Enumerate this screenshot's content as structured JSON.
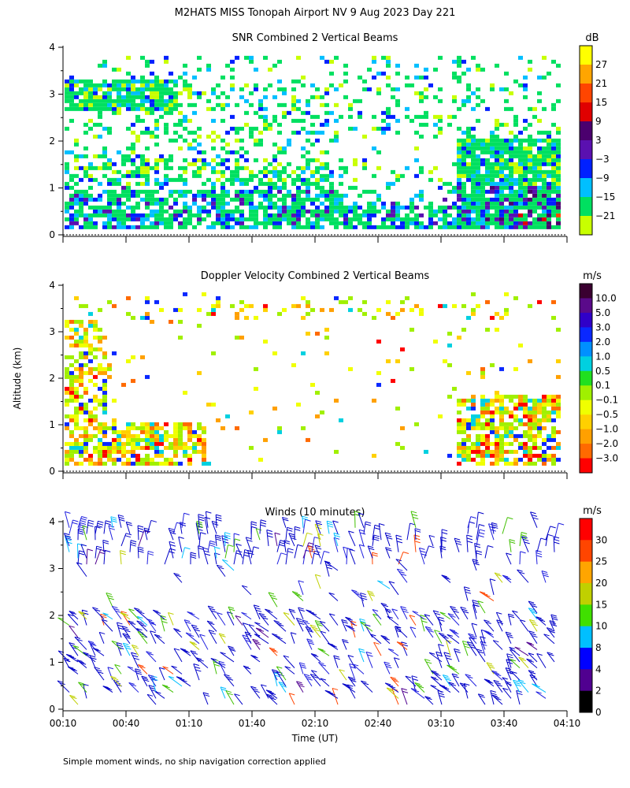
{
  "figure": {
    "title": "M2HATS MISS Tonopah Airport NV   9 Aug 2023 Day 221",
    "ylabel": "Altitude (km)",
    "xlabel": "Time (UT)",
    "footnote": "Simple moment winds, no ship navigation correction applied"
  },
  "chart_data": [
    {
      "type": "heatmap",
      "title": "SNR Combined 2 Vertical Beams",
      "ylabel": "Altitude (km)",
      "xlim": [
        "00:10",
        "04:10"
      ],
      "ylim": [
        0,
        4
      ],
      "x_ticks": [
        "00:10",
        "00:40",
        "01:10",
        "01:40",
        "02:10",
        "02:40",
        "03:10",
        "03:40",
        "04:10"
      ],
      "y_ticks": [
        "0",
        "1",
        "2",
        "3",
        "4"
      ],
      "colorbar": {
        "unit": "dB",
        "labels": [
          "27",
          "21",
          "15",
          "9",
          "3",
          "−3",
          "−9",
          "−15",
          "−21"
        ],
        "colors": [
          "#ffff00",
          "#ffa500",
          "#ff4500",
          "#e00000",
          "#4b006e",
          "#5a10b0",
          "#0020ff",
          "#00bfff",
          "#00e060",
          "#c8ff00"
        ]
      }
    },
    {
      "type": "heatmap",
      "title": "Doppler Velocity Combined 2 Vertical Beams",
      "ylabel": "Altitude (km)",
      "xlim": [
        "00:10",
        "04:10"
      ],
      "ylim": [
        0,
        4
      ],
      "x_ticks": [
        "00:10",
        "00:40",
        "01:10",
        "01:40",
        "02:10",
        "02:40",
        "03:10",
        "03:40",
        "04:10"
      ],
      "y_ticks": [
        "0",
        "1",
        "2",
        "3",
        "4"
      ],
      "colorbar": {
        "unit": "m/s",
        "labels": [
          "10.0",
          "5.0",
          "3.0",
          "2.0",
          "1.0",
          "0.5",
          "0.1",
          "−0.1",
          "−0.5",
          "−1.0",
          "−2.0",
          "−3.0"
        ],
        "colors": [
          "#3a0030",
          "#5a0a8a",
          "#3000c8",
          "#0a28ff",
          "#0090ff",
          "#00d0e0",
          "#20e020",
          "#a0f000",
          "#f0ff00",
          "#ffd000",
          "#ffa000",
          "#ff6a00",
          "#ff0000"
        ]
      }
    },
    {
      "type": "scatter",
      "title": "Winds (10 minutes)",
      "ylabel": "Altitude (km)",
      "xlabel": "Time (UT)",
      "xlim": [
        "00:10",
        "04:10"
      ],
      "ylim": [
        0,
        4
      ],
      "x_ticks": [
        "00:10",
        "00:40",
        "01:10",
        "01:40",
        "02:10",
        "02:40",
        "03:10",
        "03:40",
        "04:10"
      ],
      "y_ticks": [
        "0",
        "1",
        "2",
        "3",
        "4"
      ],
      "colorbar": {
        "unit": "m/s",
        "labels": [
          "30",
          "25",
          "20",
          "15",
          "10",
          "8",
          "4",
          "2",
          "0"
        ],
        "colors": [
          "#ff0000",
          "#ff4500",
          "#ffa500",
          "#c0d000",
          "#40e000",
          "#00bfff",
          "#0000ff",
          "#500090",
          "#000000"
        ]
      }
    }
  ]
}
